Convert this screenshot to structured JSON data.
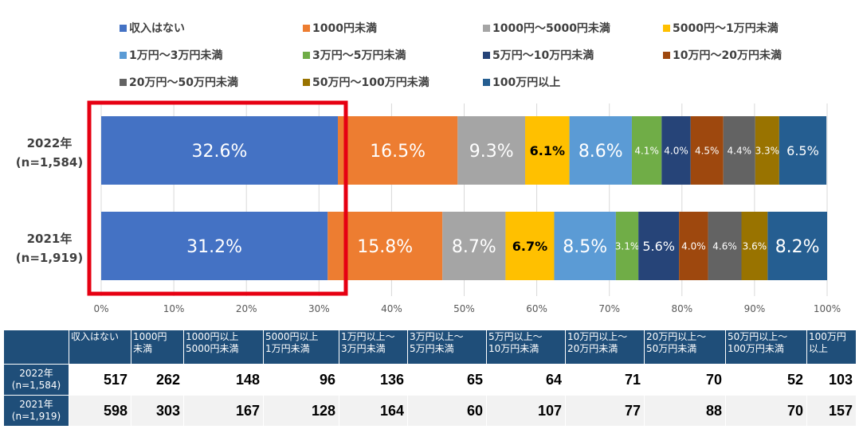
{
  "chart_data": {
    "type": "bar",
    "orientation": "horizontal",
    "stacked": "percent",
    "categories": [
      "2022年\n(n=1,584)",
      "2021年\n(n=1,919)"
    ],
    "series": [
      {
        "name": "収入はない",
        "color": "#4472c4",
        "values": [
          32.6,
          31.2
        ],
        "labels": [
          "32.6%",
          "31.2%"
        ]
      },
      {
        "name": "1000円未満",
        "color": "#ed7d31",
        "values": [
          16.5,
          15.8
        ],
        "labels": [
          "16.5%",
          "15.8%"
        ]
      },
      {
        "name": "1000円～5000円未満",
        "color": "#a5a5a5",
        "values": [
          9.3,
          8.7
        ],
        "labels": [
          "9.3%",
          "8.7%"
        ]
      },
      {
        "name": "5000円～1万円未満",
        "color": "#ffc000",
        "values": [
          6.1,
          6.7
        ],
        "labels": [
          "6.1%",
          "6.7%"
        ]
      },
      {
        "name": "1万円～3万円未満",
        "color": "#5b9bd5",
        "values": [
          8.6,
          8.5
        ],
        "labels": [
          "8.6%",
          "8.5%"
        ]
      },
      {
        "name": "3万円～5万円未満",
        "color": "#70ad47",
        "values": [
          4.1,
          3.1
        ],
        "labels": [
          "4.1%",
          "3.1%"
        ]
      },
      {
        "name": "5万円～10万円未満",
        "color": "#264478",
        "values": [
          4.0,
          5.6
        ],
        "labels": [
          "4.0%",
          "5.6%"
        ]
      },
      {
        "name": "10万円～20万円未満",
        "color": "#9e480e",
        "values": [
          4.5,
          4.0
        ],
        "labels": [
          "4.5%",
          "4.0%"
        ]
      },
      {
        "name": "20万円～50万円未満",
        "color": "#636363",
        "values": [
          4.4,
          4.6
        ],
        "labels": [
          "4.4%",
          "4.6%"
        ]
      },
      {
        "name": "50万円～100万円未満",
        "color": "#997300",
        "values": [
          3.3,
          3.6
        ],
        "labels": [
          "3.3%",
          "3.6%"
        ]
      },
      {
        "name": "100万円以上",
        "color": "#255e91",
        "values": [
          6.5,
          8.2
        ],
        "labels": [
          "6.5%",
          "8.2%"
        ]
      }
    ],
    "xlim": [
      0,
      100
    ],
    "xticks": [
      "0%",
      "10%",
      "20%",
      "30%",
      "40%",
      "50%",
      "60%",
      "70%",
      "80%",
      "90%",
      "100%"
    ],
    "grid": true,
    "legend_position": "top",
    "highlight": {
      "series": "収入はない",
      "color": "#e60012"
    },
    "table": {
      "headers": [
        "",
        "収入はない",
        "1000円\n未満",
        "1000円以上\n5000円未満",
        "5000円以上\n1万円未満",
        "1万円以上～\n3万円未満",
        "3万円以上～\n5万円未満",
        "5万円以上～\n10万円未満",
        "10万円以上～\n20万円未満",
        "20万円以上～\n50万円未満",
        "50万円以上～\n100万円未満",
        "100万円\n以上"
      ],
      "rows": [
        {
          "label": "2022年\n(n=1,584)",
          "values": [
            "517",
            "262",
            "148",
            "96",
            "136",
            "65",
            "64",
            "71",
            "70",
            "52",
            "103"
          ]
        },
        {
          "label": "2021年\n(n=1,919)",
          "values": [
            "598",
            "303",
            "167",
            "128",
            "164",
            "60",
            "107",
            "77",
            "88",
            "70",
            "157"
          ]
        }
      ]
    }
  }
}
